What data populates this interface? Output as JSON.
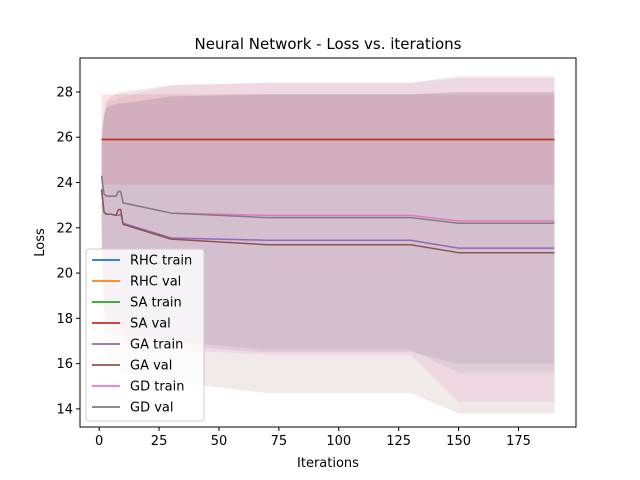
{
  "chart_data": {
    "type": "line",
    "title": "Neural Network - Loss vs. iterations",
    "xlabel": "Iterations",
    "ylabel": "Loss",
    "xlim": [
      -8,
      199
    ],
    "ylim": [
      13.2,
      29.5
    ],
    "xticks": [
      0,
      25,
      50,
      75,
      100,
      125,
      150,
      175
    ],
    "yticks": [
      14,
      16,
      18,
      20,
      22,
      24,
      26,
      28
    ],
    "grid": false,
    "legend_position": "lower-left",
    "series": [
      {
        "name": "RHC train",
        "color": "#1f77b4",
        "x": [
          1,
          190
        ],
        "y": [
          25.9,
          25.9
        ]
      },
      {
        "name": "RHC val",
        "color": "#ff7f0e",
        "x": [
          1,
          190
        ],
        "y": [
          25.9,
          25.9
        ]
      },
      {
        "name": "SA train",
        "color": "#2ca02c",
        "x": [
          1,
          190
        ],
        "y": [
          25.9,
          25.9
        ]
      },
      {
        "name": "SA val",
        "color": "#d62728",
        "x": [
          1,
          190
        ],
        "y": [
          25.9,
          25.9
        ],
        "band_upper": [
          27.9,
          27.9
        ],
        "band_lower": [
          23.9,
          23.9
        ]
      },
      {
        "name": "GA train",
        "color": "#9467bd",
        "x": [
          1,
          2,
          3,
          5,
          7,
          8,
          9,
          10,
          30,
          70,
          130,
          150,
          190
        ],
        "y": [
          23.7,
          22.7,
          22.6,
          22.6,
          22.55,
          22.55,
          22.6,
          22.2,
          21.55,
          21.45,
          21.45,
          21.1,
          21.1
        ],
        "band_upper": [
          25.7,
          26.8,
          27.3,
          27.4,
          27.4,
          27.5,
          27.5,
          27.5,
          27.8,
          27.9,
          27.9,
          28.0,
          28.0
        ],
        "band_lower": [
          21.7,
          18.5,
          17.9,
          17.8,
          17.6,
          17.5,
          17.4,
          17.1,
          16.8,
          16.5,
          16.5,
          16.0,
          16.0
        ]
      },
      {
        "name": "GA val",
        "color": "#8c564b",
        "x": [
          1,
          2,
          3,
          5,
          7,
          8,
          9,
          10,
          30,
          70,
          130,
          150,
          190
        ],
        "y": [
          23.7,
          22.7,
          22.6,
          22.6,
          22.55,
          22.8,
          22.8,
          22.15,
          21.5,
          21.25,
          21.25,
          20.9,
          20.9
        ],
        "band_upper": [
          25.7,
          27.0,
          27.6,
          27.8,
          27.9,
          28.0,
          28.0,
          28.0,
          28.3,
          28.4,
          28.4,
          28.7,
          28.7
        ],
        "band_lower": [
          21.7,
          17.0,
          16.5,
          16.2,
          16.0,
          15.9,
          15.8,
          15.6,
          15.2,
          14.7,
          14.7,
          13.8,
          13.8
        ]
      },
      {
        "name": "GD train",
        "color": "#e377c2",
        "x": [
          1,
          2,
          3,
          5,
          7,
          8,
          9,
          10,
          30,
          70,
          130,
          150,
          190
        ],
        "y": [
          24.3,
          23.5,
          23.4,
          23.4,
          23.4,
          23.6,
          23.6,
          23.1,
          22.65,
          22.55,
          22.55,
          22.3,
          22.3
        ],
        "band_upper": [
          26.3,
          27.0,
          27.5,
          27.6,
          27.6,
          27.7,
          27.7,
          27.8,
          28.3,
          28.4,
          28.4,
          28.6,
          28.6
        ],
        "band_lower": [
          22.3,
          18.0,
          17.5,
          17.4,
          17.3,
          17.2,
          17.1,
          16.9,
          16.6,
          16.4,
          16.4,
          14.3,
          14.3
        ]
      },
      {
        "name": "GD val",
        "color": "#7f7f7f",
        "x": [
          1,
          2,
          3,
          5,
          7,
          8,
          9,
          10,
          30,
          70,
          130,
          150,
          190
        ],
        "y": [
          24.3,
          23.5,
          23.4,
          23.4,
          23.4,
          23.6,
          23.6,
          23.1,
          22.65,
          22.45,
          22.45,
          22.2,
          22.2
        ],
        "band_upper": [
          26.3,
          26.9,
          27.3,
          27.4,
          27.5,
          27.5,
          27.5,
          27.5,
          27.8,
          27.9,
          27.9,
          28.0,
          28.0
        ],
        "band_lower": [
          22.3,
          18.3,
          17.9,
          17.8,
          17.7,
          17.6,
          17.5,
          17.3,
          17.0,
          16.6,
          16.6,
          15.6,
          15.6
        ]
      }
    ]
  }
}
